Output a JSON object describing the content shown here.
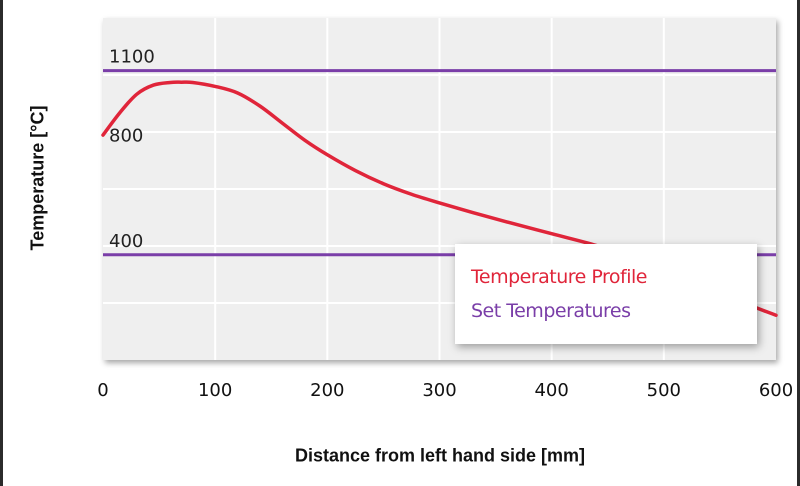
{
  "chart_data": {
    "type": "line",
    "xlabel": "Distance from left hand side [mm]",
    "ylabel": "Temperature [°C]",
    "xlim": [
      0,
      600
    ],
    "ylim": [
      0,
      1300
    ],
    "x_ticks": [
      0,
      100,
      200,
      300,
      400,
      500,
      600
    ],
    "y_tick_labels": [
      {
        "value": 1100,
        "label": "1100"
      },
      {
        "value": 800,
        "label": "800"
      },
      {
        "value": 400,
        "label": "400"
      }
    ],
    "grid": true,
    "legend_position": "bottom-right",
    "series": [
      {
        "name": "Temperature Profile",
        "color": "#e0253a",
        "x": [
          0,
          15,
          30,
          45,
          60,
          70,
          80,
          100,
          120,
          140,
          160,
          180,
          200,
          225,
          250,
          275,
          300,
          330,
          360,
          400,
          440,
          470,
          500,
          530,
          560,
          600
        ],
        "y": [
          855,
          940,
          1010,
          1045,
          1055,
          1056,
          1055,
          1040,
          1015,
          965,
          900,
          835,
          780,
          720,
          670,
          630,
          597,
          560,
          525,
          480,
          435,
          390,
          340,
          290,
          235,
          170
        ]
      },
      {
        "name": "Set Temperatures",
        "color": "#7a3ea8",
        "segments": [
          {
            "x": [
              0,
              600
            ],
            "y": [
              1100,
              1100
            ]
          },
          {
            "x": [
              0,
              600
            ],
            "y": [
              400,
              400
            ]
          }
        ]
      }
    ]
  }
}
